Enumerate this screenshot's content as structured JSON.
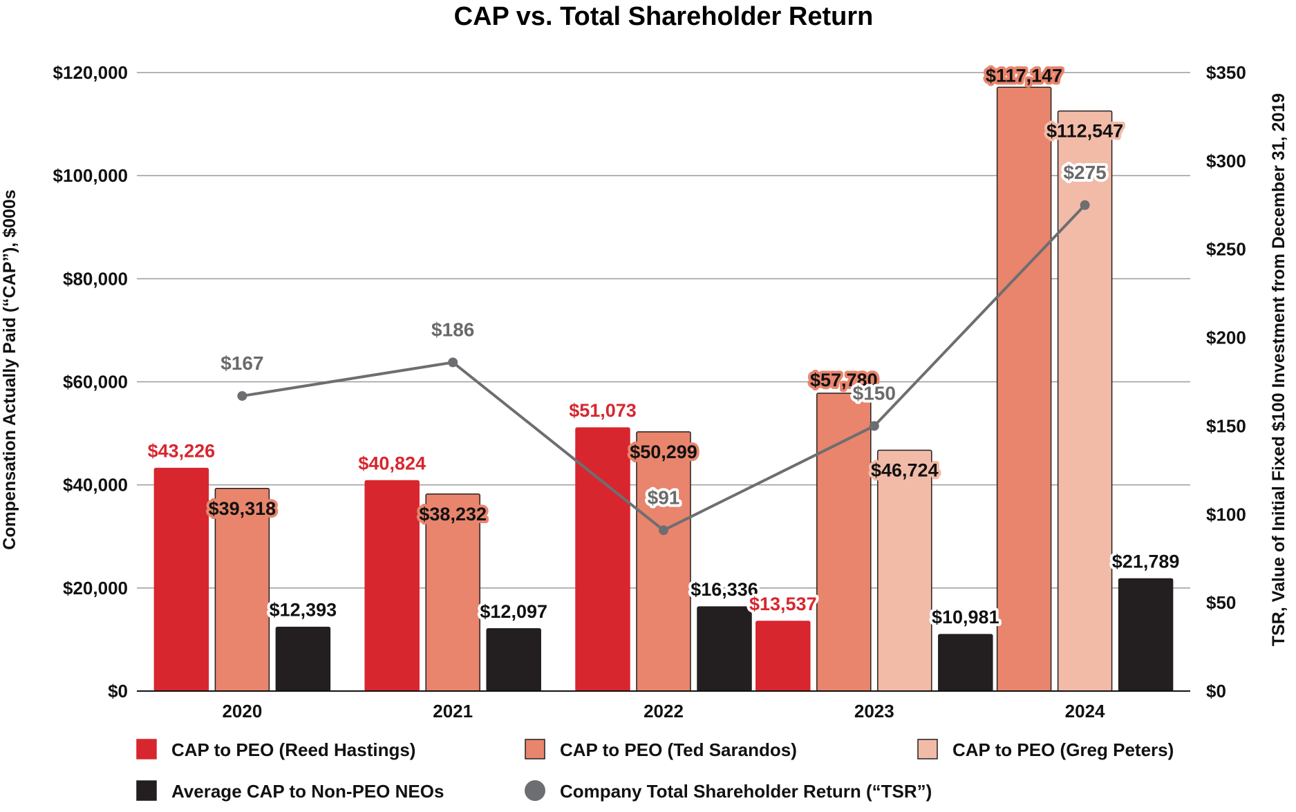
{
  "chart_data": {
    "type": "bar",
    "title": "CAP vs. Total Shareholder Return",
    "categories": [
      "2020",
      "2021",
      "2022",
      "2023",
      "2024"
    ],
    "ylabel": "Compensation Actually Paid (“CAP”), $000s",
    "y2label": "TSR, Value of Initial Fixed $100 Investment from December 31, 2019",
    "ylim": [
      0,
      120000
    ],
    "y2lim": [
      0,
      350
    ],
    "yticks": [
      "$0",
      "$20,000",
      "$40,000",
      "$60,000",
      "$80,000",
      "$100,000",
      "$120,000"
    ],
    "y2ticks": [
      "$0",
      "$50",
      "$100",
      "$150",
      "$200",
      "$250",
      "$300",
      "$350"
    ],
    "series": [
      {
        "name": "CAP to PEO (Reed Hastings)",
        "color": "#d8262e",
        "values": [
          43226,
          40824,
          51073,
          13537,
          null
        ],
        "labels": [
          "$43,226",
          "$40,824",
          "$51,073",
          "$13,537",
          null
        ]
      },
      {
        "name": "CAP to PEO (Ted Sarandos)",
        "color": "#e8856c",
        "values": [
          39318,
          38232,
          50299,
          57780,
          117147
        ],
        "labels": [
          "$39,318",
          "$38,232",
          "$50,299",
          "$57,780",
          "$117,147"
        ]
      },
      {
        "name": "CAP to PEO (Greg Peters)",
        "color": "#f2bba8",
        "values": [
          null,
          null,
          null,
          46724,
          112547
        ],
        "labels": [
          null,
          null,
          null,
          "$46,724",
          "$112,547"
        ]
      },
      {
        "name": "Average CAP to Non-PEO NEOs",
        "color": "#231f20",
        "values": [
          12393,
          12097,
          16336,
          10981,
          21789
        ],
        "labels": [
          "$12,393",
          "$12,097",
          "$16,336",
          "$10,981",
          "$21,789"
        ]
      }
    ],
    "tsr": {
      "name": "Company Total Shareholder Return (“TSR”)",
      "color": "#6d6e71",
      "values": [
        167,
        186,
        91,
        150,
        275
      ],
      "labels": [
        "$167",
        "$186",
        "$91",
        "$150",
        "$275"
      ]
    },
    "legend_position": "bottom",
    "grid": true
  }
}
